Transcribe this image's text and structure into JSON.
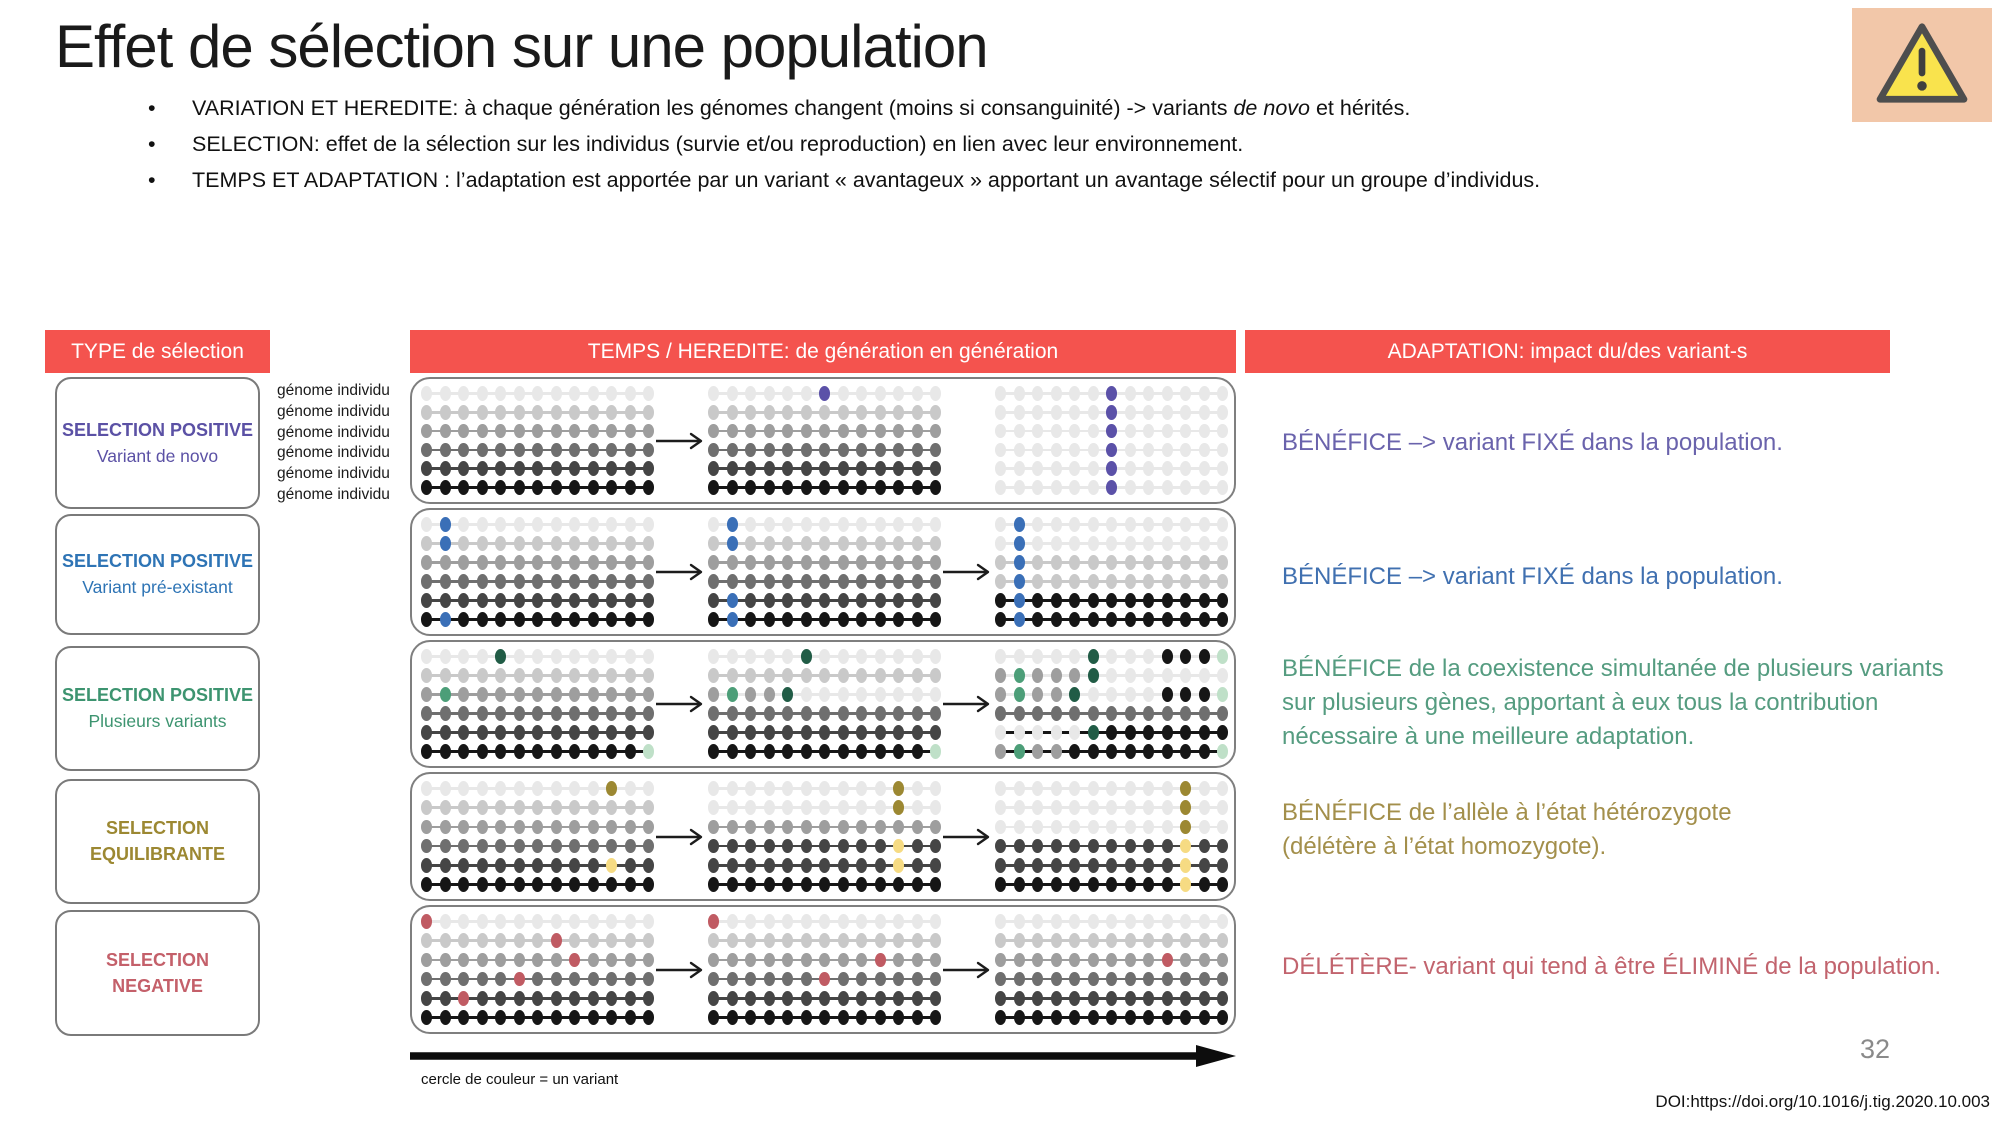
{
  "slide": {
    "title": "Effet de sélection sur une population",
    "page_number": "32",
    "doi": "DOI:https://doi.org/10.1016/j.tig.2020.10.003"
  },
  "intro": {
    "bullets": [
      {
        "before": "VARIATION ET HEREDITE: à chaque génération les génomes changent (moins si consanguinité) -> variants ",
        "italic": "de novo",
        "after": " et hérités."
      },
      {
        "before": "SELECTION: effet de la sélection sur les individus (survie et/ou reproduction) en lien avec leur environnement.",
        "italic": "",
        "after": ""
      },
      {
        "before": "TEMPS ET ADAPTATION : l’adaptation est apportée par un variant « avantageux » apportant un avantage sélectif pour un groupe d’individus.",
        "italic": "",
        "after": ""
      }
    ]
  },
  "headers": {
    "bar_color": "#F4534E",
    "col1": "TYPE de sélection",
    "col2": "TEMPS / HEREDITE: de génération en génération",
    "col3": "ADAPTATION: impact du/des variant-s"
  },
  "type_boxes": [
    {
      "line1": "SELECTION POSITIVE",
      "line2": "Variant de novo",
      "color": "#5B51A5"
    },
    {
      "line1": "SELECTION POSITIVE",
      "line2": "Variant pré-existant",
      "color": "#2E74B5"
    },
    {
      "line1": "SELECTION POSITIVE",
      "line2": "Plusieurs variants",
      "color": "#3D9470"
    },
    {
      "line1": "SELECTION",
      "line2": "EQUILIBRANTE",
      "color": "#9C8832"
    },
    {
      "line1": "SELECTION",
      "line2": "NEGATIVE",
      "color": "#C4606A"
    }
  ],
  "genome_labels": [
    "génome individu",
    "génome individu",
    "génome individu",
    "génome individu",
    "génome individu",
    "génome individu"
  ],
  "diagram": {
    "legend": "cercle de couleur = un variant",
    "dot_colors": {
      "0": "#E8E8E8",
      "1": "#C9C9C9",
      "2": "#9E9E9E",
      "3": "#6F6F6F",
      "4": "#454545",
      "5": "#161616",
      "P": "#5B51A8",
      "B": "#3A6FB7",
      "G": "#215C46",
      "g": "#4C9E78",
      "l": "#BFE0C8",
      "O": "#9C8832",
      "y": "#F6DB83",
      "R": "#C05B63"
    },
    "panels": [
      {
        "arrows": [
          true,
          false
        ],
        "generations": [
          [
            "0000000000000",
            "1111111111111",
            "2222222222222",
            "3333333333333",
            "4444444444444",
            "5555555555555"
          ],
          [
            "000000P000000",
            "1111111111111",
            "2222222222222",
            "3333333333333",
            "4444444444444",
            "5555555555555"
          ],
          [
            "000000P000000",
            "000000P000000",
            "000000P000000",
            "000000P000000",
            "000000P000000",
            "000000P000000"
          ]
        ]
      },
      {
        "arrows": [
          true,
          true
        ],
        "generations": [
          [
            "0B00000000000",
            "1B11111111111",
            "2222222222222",
            "3333333333333",
            "4444444444444",
            "5B55555555555"
          ],
          [
            "0B00000000000",
            "1B11111111111",
            "2222222222222",
            "3333333333333",
            "4B44444444444",
            "5B55555555555"
          ],
          [
            "0B00000000000",
            "0B00000000000",
            "1B11111111111",
            "1B11111111111",
            "5B55555555555",
            "5B55555555555"
          ]
        ]
      },
      {
        "arrows": [
          true,
          true
        ],
        "generations": [
          [
            "0000G00000000",
            "1111111111111",
            "2g22222222222",
            "3333333333333",
            "4444444444444",
            "555555555555l"
          ],
          [
            "00000G0000000",
            "1111111111111",
            "2g22G00000000",
            "3333333333333",
            "4444444444444",
            "555555555555l"
          ],
          [
            "00000G000555l",
            "2g222G0000000",
            "2g22G0000555l",
            "3333333333333",
            "00000G5555555",
            "2g2255555555l"
          ]
        ]
      },
      {
        "arrows": [
          true,
          true
        ],
        "generations": [
          [
            "0000000000O00",
            "1111111111111",
            "2222222222222",
            "3333333333333",
            "4444444444y44",
            "5555555555555"
          ],
          [
            "0000000000O00",
            "0000000000O00",
            "2222222222222",
            "4444444444y44",
            "4444444444y44",
            "5555555555555"
          ],
          [
            "0000000000O00",
            "0000000000O00",
            "0000000000O00",
            "4444444444y44",
            "4444444444y44",
            "5555555555y55"
          ]
        ]
      },
      {
        "arrows": [
          true,
          true
        ],
        "generations": [
          [
            "R000000000000",
            "1111111R11111",
            "22222222R2222",
            "33333R3333333",
            "44R4444444444",
            "5555555555555"
          ],
          [
            "R000000000000",
            "1111111111111",
            "222222222R222",
            "333333R333333",
            "4444444444444",
            "5555555555555"
          ],
          [
            "0000000000000",
            "1111111111111",
            "222222222R222",
            "3333333333333",
            "4444444444444",
            "5555555555555"
          ]
        ]
      }
    ]
  },
  "adaptation_texts": [
    {
      "text": "BÉNÉFICE –> variant FIXÉ dans la population.",
      "color": "#6A63AC"
    },
    {
      "text": "BÉNÉFICE –> variant FIXÉ dans la population.",
      "color": "#4070B0"
    },
    {
      "text": "BÉNÉFICE de la coexistence simultanée de plusieurs variants sur plusieurs gènes, apportant à eux tous la contribution nécessaire à une meilleure adaptation.",
      "color": "#559C80"
    },
    {
      "text": "BÉNÉFICE de l’allèle à l’état hétérozygote\n(délétère à l’état homozygote).",
      "color": "#A38F4B"
    },
    {
      "text": "DÉLÉTÈRE- variant qui tend à être ÉLIMINÉ de la population.",
      "color": "#C2646E"
    }
  ]
}
